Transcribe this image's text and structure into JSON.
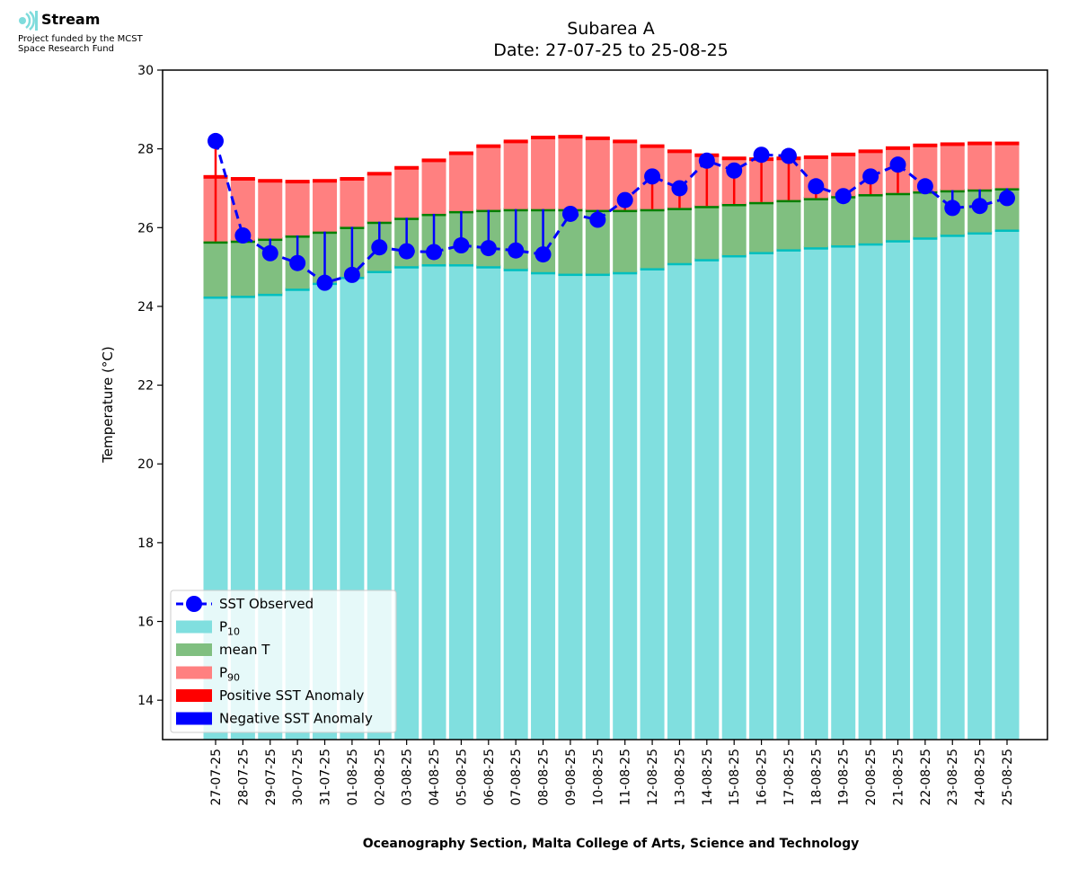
{
  "branding": {
    "name": "Stream",
    "funding_line1": "Project funded by the MCST",
    "funding_line2": "Space Research Fund"
  },
  "chart_data": {
    "type": "bar",
    "title": "Subarea A",
    "subtitle": "Date: 27-07-25 to 25-08-25",
    "xlabel": "Oceanography Section, Malta College of Arts, Science and Technology",
    "ylabel": "Temperature (°C)",
    "ylim": [
      13,
      30
    ],
    "yticks": [
      14,
      16,
      18,
      20,
      22,
      24,
      26,
      28,
      30
    ],
    "categories": [
      "27-07-25",
      "28-07-25",
      "29-07-25",
      "30-07-25",
      "31-07-25",
      "01-08-25",
      "02-08-25",
      "03-08-25",
      "04-08-25",
      "05-08-25",
      "06-08-25",
      "07-08-25",
      "08-08-25",
      "09-08-25",
      "10-08-25",
      "11-08-25",
      "12-08-25",
      "13-08-25",
      "14-08-25",
      "15-08-25",
      "16-08-25",
      "17-08-25",
      "18-08-25",
      "19-08-25",
      "20-08-25",
      "21-08-25",
      "22-08-25",
      "23-08-25",
      "24-08-25",
      "25-08-25"
    ],
    "series": [
      {
        "name": "P10",
        "color": "#80dfdf",
        "edge": "#00bfbf",
        "values": [
          24.25,
          24.27,
          24.32,
          24.45,
          24.6,
          24.75,
          24.9,
          25.02,
          25.07,
          25.07,
          25.02,
          24.95,
          24.87,
          24.83,
          24.83,
          24.87,
          24.97,
          25.1,
          25.2,
          25.3,
          25.38,
          25.45,
          25.5,
          25.55,
          25.6,
          25.68,
          25.75,
          25.82,
          25.88,
          25.95
        ]
      },
      {
        "name": "mean T",
        "color": "#80bf80",
        "edge": "#008000",
        "values": [
          25.65,
          25.67,
          25.72,
          25.8,
          25.9,
          26.02,
          26.15,
          26.25,
          26.35,
          26.42,
          26.45,
          26.47,
          26.47,
          26.47,
          26.45,
          26.45,
          26.47,
          26.5,
          26.55,
          26.6,
          26.65,
          26.7,
          26.75,
          26.8,
          26.85,
          26.88,
          26.92,
          26.95,
          26.97,
          27.0
        ]
      },
      {
        "name": "P90",
        "color": "#ff8080",
        "edge": "#ff0000",
        "values": [
          27.3,
          27.25,
          27.2,
          27.18,
          27.2,
          27.25,
          27.38,
          27.53,
          27.72,
          27.9,
          28.08,
          28.2,
          28.3,
          28.32,
          28.28,
          28.2,
          28.08,
          27.95,
          27.85,
          27.77,
          27.75,
          27.77,
          27.8,
          27.87,
          27.95,
          28.03,
          28.1,
          28.13,
          28.15,
          28.15
        ]
      },
      {
        "name": "SST Observed",
        "color": "#0000ff",
        "values": [
          28.2,
          25.8,
          25.35,
          25.1,
          24.6,
          24.8,
          25.5,
          25.4,
          25.38,
          25.55,
          25.48,
          25.42,
          25.32,
          26.35,
          26.2,
          26.7,
          27.3,
          27.0,
          27.7,
          27.45,
          27.85,
          27.82,
          27.05,
          26.8,
          27.3,
          27.6,
          27.05,
          26.5,
          26.55,
          26.75
        ]
      }
    ],
    "anomaly_colors": {
      "positive": "#ff0000",
      "negative": "#0000ff"
    },
    "legend": {
      "placement": "lower-left",
      "entries": [
        {
          "label": "SST Observed",
          "kind": "marker",
          "color": "#0000ff"
        },
        {
          "label": "P",
          "sub": "10",
          "kind": "patch",
          "color": "#80dfdf"
        },
        {
          "label": "mean T",
          "kind": "patch",
          "color": "#80bf80"
        },
        {
          "label": "P",
          "sub": "90",
          "kind": "patch",
          "color": "#ff8080"
        },
        {
          "label": "Positive SST Anomaly",
          "kind": "patch",
          "color": "#ff0000"
        },
        {
          "label": "Negative SST Anomaly",
          "kind": "patch",
          "color": "#0000ff"
        }
      ]
    }
  }
}
